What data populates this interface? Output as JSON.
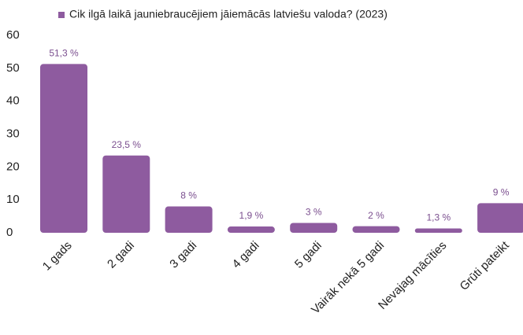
{
  "chart_data": {
    "type": "bar",
    "categories": [
      "1 gads",
      "2 gadi",
      "3 gadi",
      "4 gadi",
      "5 gadi",
      "Vairāk nekā 5 gadi",
      "Nevajag mācīties",
      "Grūti pateikt"
    ],
    "series": [
      {
        "name": "Cik ilgā laikā jauniebraucējiem jāiemācās latviešu valoda? (2023)",
        "color": "#8e5b9f",
        "values": [
          51.3,
          23.5,
          8,
          1.9,
          3,
          2,
          1.3,
          9
        ],
        "value_labels": [
          "51,3 %",
          "23,5 %",
          "8 %",
          "1,9 %",
          "3 %",
          "2 %",
          "1,3 %",
          "9 %"
        ]
      }
    ],
    "ylim": [
      0,
      60
    ],
    "yticks": [
      0,
      10,
      20,
      30,
      40,
      50,
      60
    ],
    "grid": false,
    "legend": "top"
  }
}
